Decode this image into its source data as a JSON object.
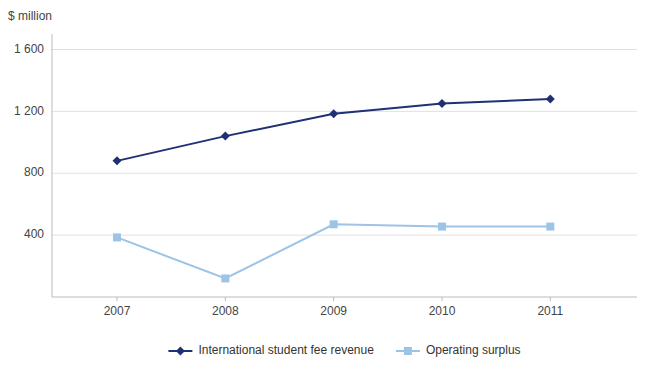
{
  "chart_data": {
    "type": "line",
    "y_label": "$ million",
    "x": [
      2007,
      2008,
      2009,
      2010,
      2011
    ],
    "xlim": [
      2006.4,
      2011.8
    ],
    "xticks": [
      2007,
      2008,
      2009,
      2010,
      2011
    ],
    "ylim": [
      0,
      1700
    ],
    "yticks": [
      400,
      800,
      {
        "value": 1200,
        "label": "1 200"
      },
      {
        "value": 1600,
        "label": "1 600"
      }
    ],
    "grid": true,
    "legend": "bottom",
    "series": [
      {
        "name": "International student fee revenue",
        "color": "#1F3075",
        "marker": "diamond",
        "values": [
          880,
          1040,
          1185,
          1250,
          1280
        ]
      },
      {
        "name": "Operating surplus",
        "color": "#9DC3E6",
        "marker": "square",
        "values": [
          385,
          120,
          470,
          455,
          455
        ]
      }
    ]
  }
}
